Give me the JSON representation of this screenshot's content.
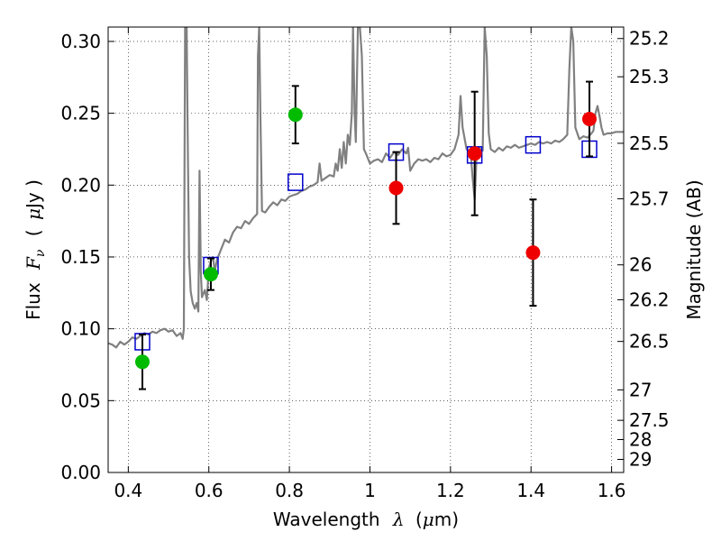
{
  "chart_data": {
    "type": "scatter",
    "title": "",
    "xlabel": {
      "prefix": "Wavelength",
      "symbol": "λ",
      "unit_open": "(",
      "unit_mu": "μ",
      "unit_rest": "m)"
    },
    "ylabel": {
      "prefix": "Flux",
      "symbol": "F",
      "sub": "ν",
      "unit_open": "(",
      "unit_mu": "μ",
      "unit_rest": "Jy )"
    },
    "y2label": "Magnitude (AB)",
    "xlim": [
      0.35,
      1.63
    ],
    "ylim": [
      0.0,
      0.31
    ],
    "grid": true,
    "xticks": [
      0.4,
      0.6,
      0.8,
      1.0,
      1.2,
      1.4,
      1.6
    ],
    "xtick_labels": [
      "0.4",
      "0.6",
      "0.8",
      "1",
      "1.2",
      "1.4",
      "1.6"
    ],
    "yticks": [
      0.0,
      0.05,
      0.1,
      0.15,
      0.2,
      0.25,
      0.3
    ],
    "ytick_labels": [
      "0.00",
      "0.05",
      "0.10",
      "0.15",
      "0.20",
      "0.25",
      "0.30"
    ],
    "mag_ticks": [
      {
        "label": "25.2",
        "flux": 0.302
      },
      {
        "label": "25.3",
        "flux": 0.2754
      },
      {
        "label": "25.5",
        "flux": 0.2291
      },
      {
        "label": "25.7",
        "flux": 0.1905
      },
      {
        "label": "26",
        "flux": 0.1445
      },
      {
        "label": "26.2",
        "flux": 0.1202
      },
      {
        "label": "26.5",
        "flux": 0.0912
      },
      {
        "label": "27",
        "flux": 0.0575
      },
      {
        "label": "27.5",
        "flux": 0.0363
      },
      {
        "label": "28",
        "flux": 0.0229
      },
      {
        "label": "29",
        "flux": 0.0091
      }
    ],
    "series": [
      {
        "kind": "line",
        "color": "#808080",
        "points": [
          [
            0.35,
            0.09
          ],
          [
            0.36,
            0.089
          ],
          [
            0.37,
            0.087
          ],
          [
            0.38,
            0.091
          ],
          [
            0.39,
            0.089
          ],
          [
            0.4,
            0.091
          ],
          [
            0.41,
            0.094
          ],
          [
            0.42,
            0.093
          ],
          [
            0.43,
            0.095
          ],
          [
            0.44,
            0.097
          ],
          [
            0.45,
            0.096
          ],
          [
            0.46,
            0.098
          ],
          [
            0.47,
            0.097
          ],
          [
            0.48,
            0.099
          ],
          [
            0.49,
            0.1
          ],
          [
            0.5,
            0.098
          ],
          [
            0.51,
            0.099
          ],
          [
            0.515,
            0.097
          ],
          [
            0.52,
            0.095
          ],
          [
            0.53,
            0.097
          ],
          [
            0.535,
            0.093
          ],
          [
            0.538,
            0.1
          ],
          [
            0.541,
            0.31
          ],
          [
            0.545,
            0.31
          ],
          [
            0.548,
            0.22
          ],
          [
            0.551,
            0.15
          ],
          [
            0.555,
            0.126
          ],
          [
            0.56,
            0.118
          ],
          [
            0.565,
            0.114
          ],
          [
            0.57,
            0.118
          ],
          [
            0.574,
            0.112
          ],
          [
            0.577,
            0.21
          ],
          [
            0.58,
            0.14
          ],
          [
            0.583,
            0.122
          ],
          [
            0.59,
            0.127
          ],
          [
            0.595,
            0.12
          ],
          [
            0.6,
            0.142
          ],
          [
            0.605,
            0.147
          ],
          [
            0.61,
            0.15
          ],
          [
            0.615,
            0.14
          ],
          [
            0.62,
            0.148
          ],
          [
            0.63,
            0.155
          ],
          [
            0.64,
            0.162
          ],
          [
            0.65,
            0.16
          ],
          [
            0.66,
            0.167
          ],
          [
            0.67,
            0.171
          ],
          [
            0.68,
            0.17
          ],
          [
            0.69,
            0.175
          ],
          [
            0.7,
            0.173
          ],
          [
            0.71,
            0.177
          ],
          [
            0.72,
            0.18
          ],
          [
            0.722,
            0.29
          ],
          [
            0.725,
            0.31
          ],
          [
            0.728,
            0.25
          ],
          [
            0.732,
            0.182
          ],
          [
            0.74,
            0.181
          ],
          [
            0.75,
            0.185
          ],
          [
            0.76,
            0.188
          ],
          [
            0.77,
            0.186
          ],
          [
            0.78,
            0.19
          ],
          [
            0.79,
            0.189
          ],
          [
            0.8,
            0.192
          ],
          [
            0.81,
            0.193
          ],
          [
            0.82,
            0.194
          ],
          [
            0.83,
            0.196
          ],
          [
            0.84,
            0.197
          ],
          [
            0.85,
            0.199
          ],
          [
            0.86,
            0.2
          ],
          [
            0.87,
            0.202
          ],
          [
            0.875,
            0.215
          ],
          [
            0.88,
            0.203
          ],
          [
            0.89,
            0.205
          ],
          [
            0.9,
            0.207
          ],
          [
            0.91,
            0.206
          ],
          [
            0.915,
            0.215
          ],
          [
            0.92,
            0.21
          ],
          [
            0.925,
            0.225
          ],
          [
            0.93,
            0.212
          ],
          [
            0.935,
            0.23
          ],
          [
            0.94,
            0.215
          ],
          [
            0.945,
            0.235
          ],
          [
            0.95,
            0.228
          ],
          [
            0.955,
            0.25
          ],
          [
            0.958,
            0.31
          ],
          [
            0.962,
            0.25
          ],
          [
            0.965,
            0.23
          ],
          [
            0.97,
            0.31
          ],
          [
            0.975,
            0.31
          ],
          [
            0.98,
            0.29
          ],
          [
            0.985,
            0.225
          ],
          [
            0.99,
            0.222
          ],
          [
            1.0,
            0.215
          ],
          [
            1.01,
            0.217
          ],
          [
            1.02,
            0.218
          ],
          [
            1.03,
            0.216
          ],
          [
            1.04,
            0.222
          ],
          [
            1.05,
            0.219
          ],
          [
            1.06,
            0.223
          ],
          [
            1.07,
            0.221
          ],
          [
            1.08,
            0.225
          ],
          [
            1.09,
            0.222
          ],
          [
            1.095,
            0.226
          ],
          [
            1.1,
            0.21
          ],
          [
            1.11,
            0.215
          ],
          [
            1.12,
            0.218
          ],
          [
            1.13,
            0.217
          ],
          [
            1.14,
            0.218
          ],
          [
            1.15,
            0.216
          ],
          [
            1.16,
            0.219
          ],
          [
            1.17,
            0.218
          ],
          [
            1.18,
            0.222
          ],
          [
            1.19,
            0.22
          ],
          [
            1.2,
            0.221
          ],
          [
            1.21,
            0.225
          ],
          [
            1.22,
            0.235
          ],
          [
            1.225,
            0.262
          ],
          [
            1.23,
            0.24
          ],
          [
            1.24,
            0.225
          ],
          [
            1.25,
            0.223
          ],
          [
            1.255,
            0.205
          ],
          [
            1.26,
            0.19
          ],
          [
            1.265,
            0.222
          ],
          [
            1.27,
            0.226
          ],
          [
            1.28,
            0.224
          ],
          [
            1.285,
            0.31
          ],
          [
            1.29,
            0.29
          ],
          [
            1.295,
            0.236
          ],
          [
            1.3,
            0.225
          ],
          [
            1.31,
            0.223
          ],
          [
            1.32,
            0.226
          ],
          [
            1.33,
            0.224
          ],
          [
            1.34,
            0.227
          ],
          [
            1.35,
            0.226
          ],
          [
            1.36,
            0.228
          ],
          [
            1.37,
            0.226
          ],
          [
            1.38,
            0.227
          ],
          [
            1.39,
            0.228
          ],
          [
            1.4,
            0.229
          ],
          [
            1.41,
            0.228
          ],
          [
            1.42,
            0.23
          ],
          [
            1.43,
            0.229
          ],
          [
            1.44,
            0.23
          ],
          [
            1.45,
            0.229
          ],
          [
            1.46,
            0.231
          ],
          [
            1.47,
            0.23
          ],
          [
            1.48,
            0.232
          ],
          [
            1.49,
            0.235
          ],
          [
            1.495,
            0.28
          ],
          [
            1.5,
            0.31
          ],
          [
            1.505,
            0.3
          ],
          [
            1.51,
            0.24
          ],
          [
            1.52,
            0.232
          ],
          [
            1.53,
            0.234
          ],
          [
            1.54,
            0.233
          ],
          [
            1.55,
            0.236
          ],
          [
            1.555,
            0.238
          ],
          [
            1.56,
            0.25
          ],
          [
            1.565,
            0.255
          ],
          [
            1.57,
            0.248
          ],
          [
            1.575,
            0.24
          ],
          [
            1.58,
            0.235
          ],
          [
            1.59,
            0.236
          ],
          [
            1.6,
            0.236
          ],
          [
            1.61,
            0.237
          ],
          [
            1.62,
            0.237
          ],
          [
            1.63,
            0.237
          ]
        ]
      },
      {
        "kind": "square",
        "color": "#0000cc",
        "points": [
          [
            0.435,
            0.091
          ],
          [
            0.605,
            0.144
          ],
          [
            0.815,
            0.202
          ],
          [
            1.065,
            0.223
          ],
          [
            1.26,
            0.221
          ],
          [
            1.405,
            0.228
          ],
          [
            1.545,
            0.225
          ]
        ]
      },
      {
        "kind": "circle",
        "color": "#00bb00",
        "points": [
          [
            0.435,
            0.077,
            0.019
          ],
          [
            0.605,
            0.138,
            0.011
          ],
          [
            0.815,
            0.249,
            0.02
          ]
        ]
      },
      {
        "kind": "circle",
        "color": "#ee0000",
        "points": [
          [
            1.065,
            0.198,
            0.025
          ],
          [
            1.26,
            0.222,
            0.043
          ],
          [
            1.405,
            0.153,
            0.037
          ],
          [
            1.545,
            0.246,
            0.026
          ]
        ]
      }
    ]
  }
}
